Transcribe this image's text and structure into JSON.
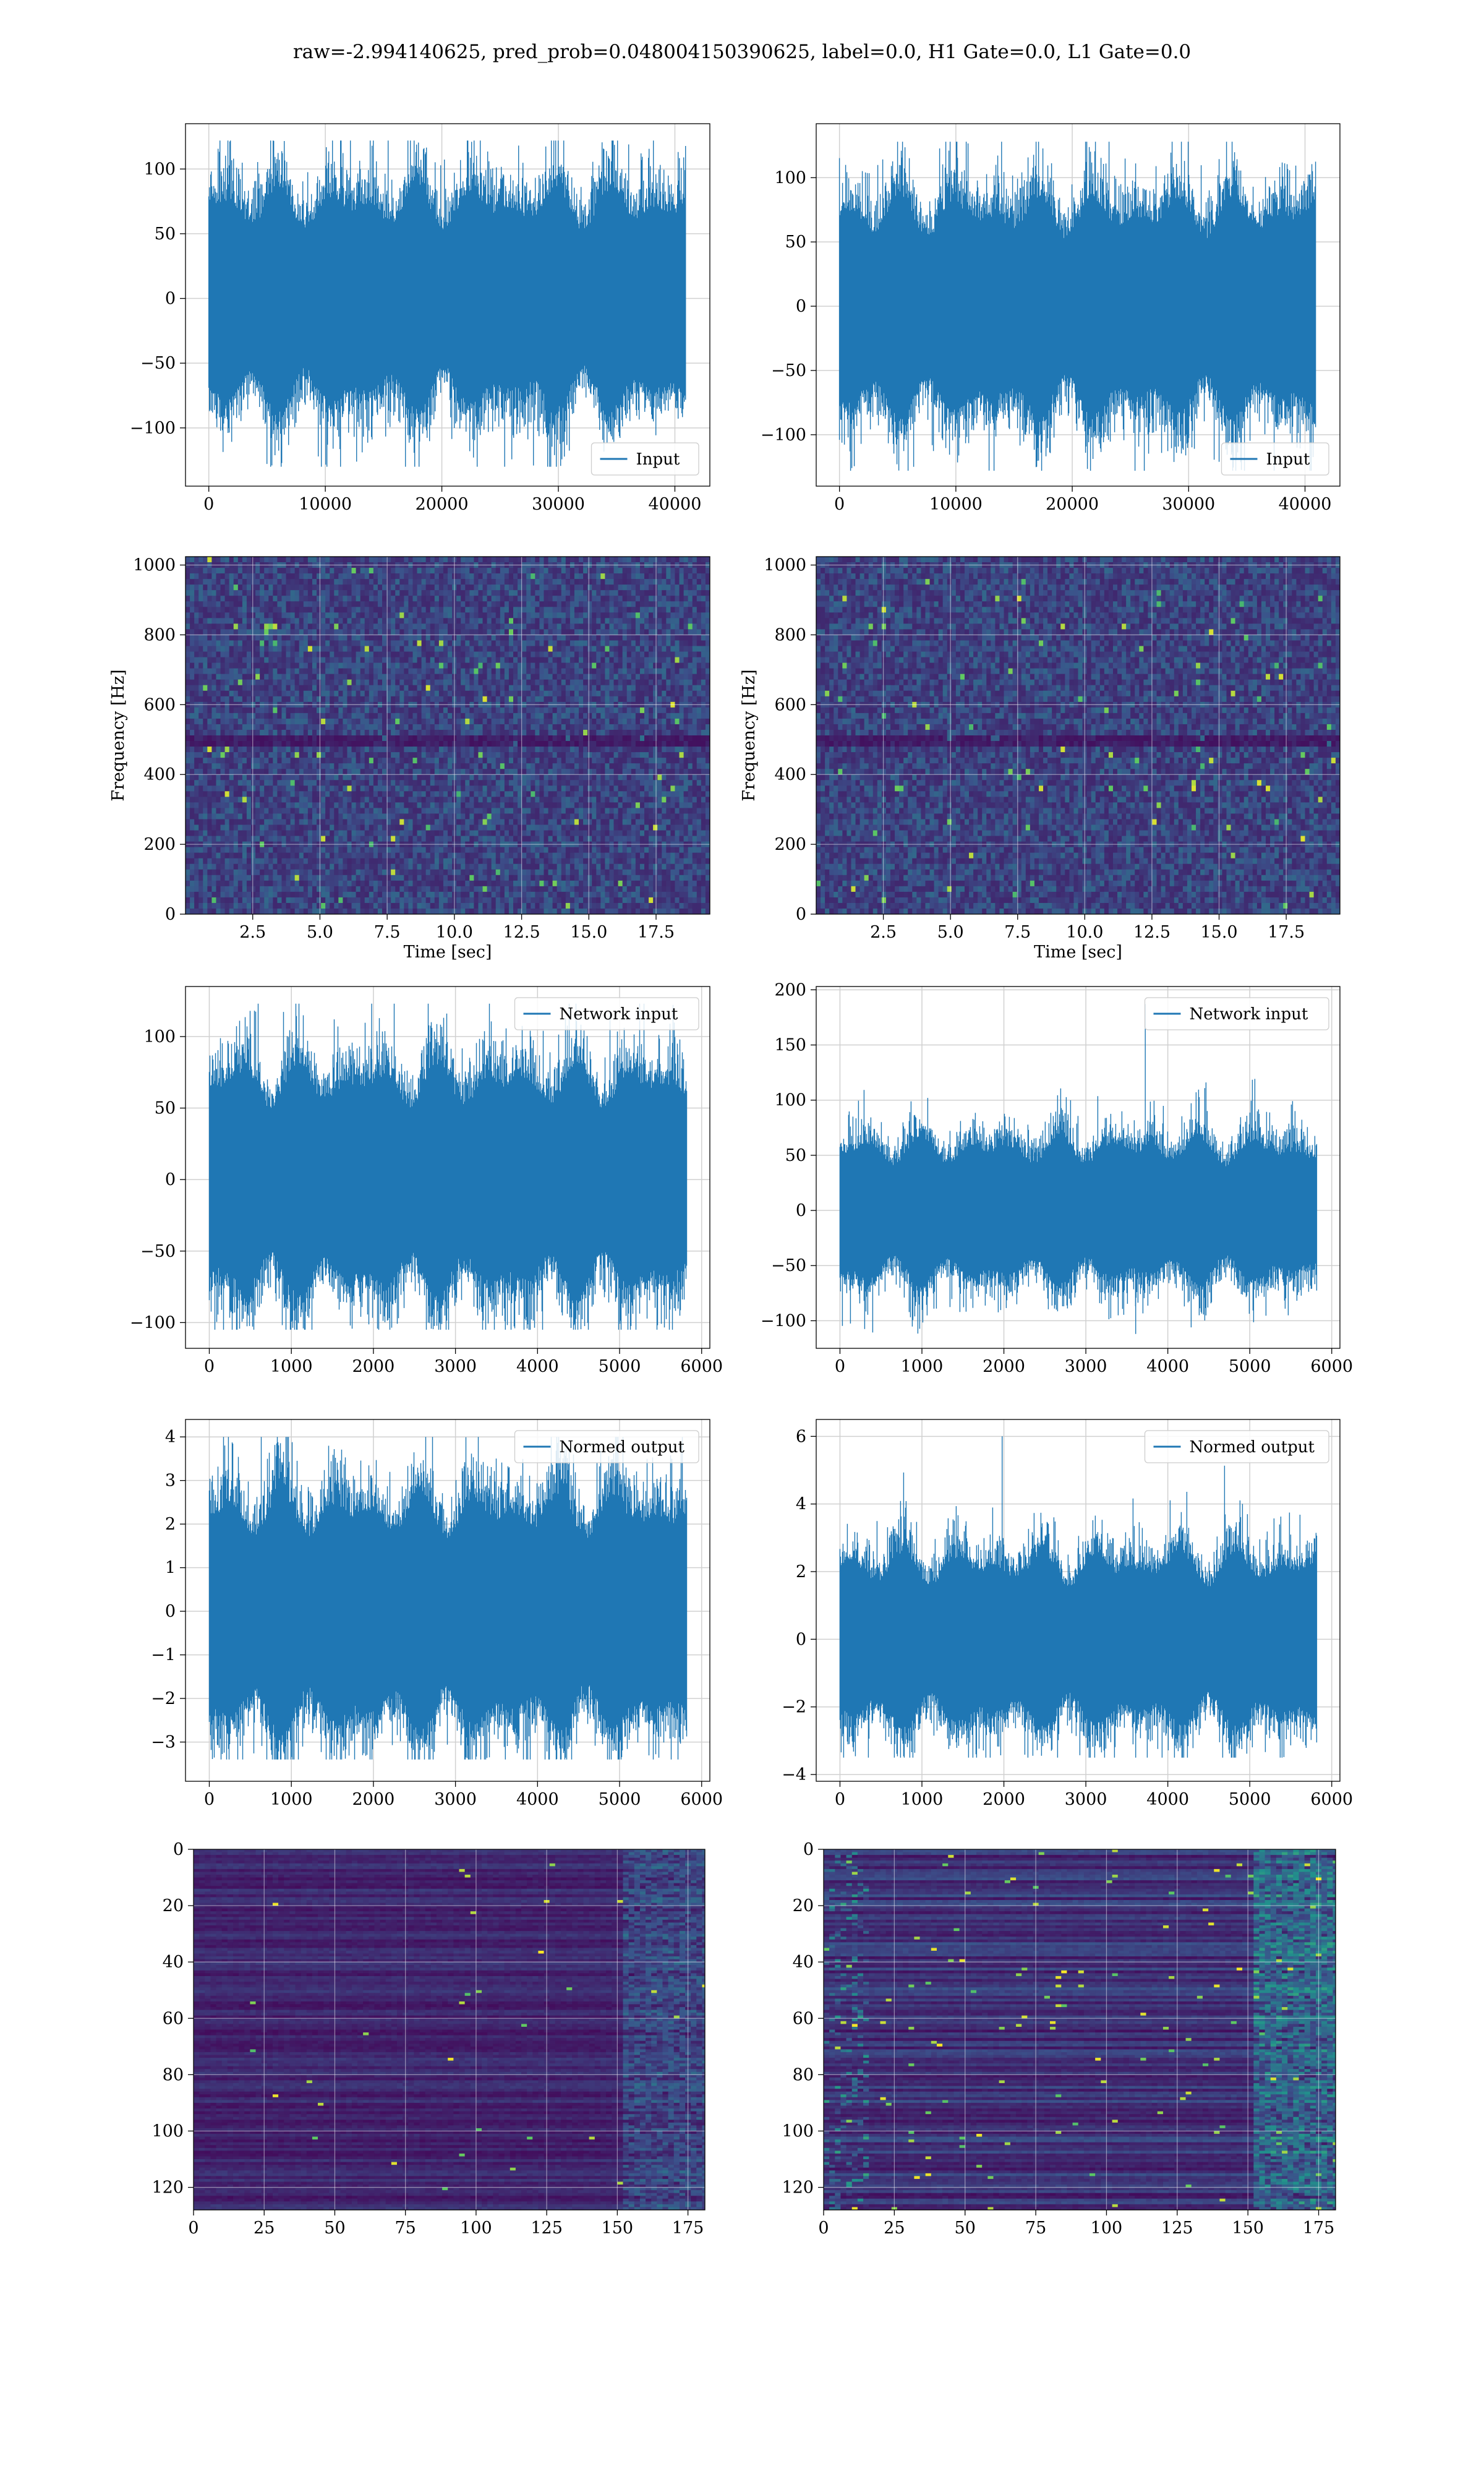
{
  "figure_title": "raw=-2.994140625, pred_prob=0.048004150390625, label=0.0, H1 Gate=0.0, L1 Gate=0.0",
  "colors": {
    "line": "#1f77b4",
    "grid": "#d0d0d0",
    "viridis_low": "#440154",
    "viridis_mid": "#21918c",
    "viridis_high": "#fde725"
  },
  "chart_data": [
    {
      "id": "r1c1",
      "type": "line",
      "title": "",
      "xlabel": "",
      "ylabel": "",
      "grid": true,
      "legend": {
        "placement": "lower-right",
        "entries": [
          "Input"
        ]
      },
      "series": [
        {
          "name": "Input",
          "n_points": 40960,
          "sigma": 30,
          "max": 122,
          "min": -130
        }
      ],
      "xlim": [
        -2000,
        43000
      ],
      "ylim": [
        -145,
        135
      ],
      "xticks": [
        0,
        10000,
        20000,
        30000,
        40000
      ],
      "yticks": [
        -100,
        -50,
        0,
        50,
        100
      ]
    },
    {
      "id": "r1c2",
      "type": "line",
      "title": "",
      "xlabel": "",
      "ylabel": "",
      "grid": true,
      "legend": {
        "placement": "lower-right",
        "entries": [
          "Input"
        ]
      },
      "series": [
        {
          "name": "Input",
          "n_points": 40960,
          "sigma": 30,
          "max": 128,
          "min": -128
        }
      ],
      "xlim": [
        -2000,
        43000
      ],
      "ylim": [
        -140,
        142
      ],
      "xticks": [
        0,
        10000,
        20000,
        30000,
        40000
      ],
      "yticks": [
        -100,
        -50,
        0,
        50,
        100
      ]
    },
    {
      "id": "r2c1",
      "type": "heatmap",
      "title": "",
      "xlabel": "Time [sec]",
      "ylabel": "Frequency [Hz]",
      "grid": true,
      "colormap": "viridis",
      "xlim": [
        0,
        19.5
      ],
      "ylim": [
        0,
        1024
      ],
      "xticks": [
        2.5,
        5.0,
        7.5,
        10.0,
        12.5,
        15.0,
        17.5
      ],
      "yticks": [
        0,
        200,
        400,
        600,
        800,
        1000
      ]
    },
    {
      "id": "r2c2",
      "type": "heatmap",
      "title": "",
      "xlabel": "Time [sec]",
      "ylabel": "Frequency [Hz]",
      "grid": true,
      "colormap": "viridis",
      "xlim": [
        0,
        19.5
      ],
      "ylim": [
        0,
        1024
      ],
      "xticks": [
        2.5,
        5.0,
        7.5,
        10.0,
        12.5,
        15.0,
        17.5
      ],
      "yticks": [
        0,
        200,
        400,
        600,
        800,
        1000
      ]
    },
    {
      "id": "r3c1",
      "type": "line",
      "title": "",
      "xlabel": "",
      "ylabel": "",
      "grid": true,
      "legend": {
        "placement": "upper-right",
        "entries": [
          "Network input"
        ]
      },
      "series": [
        {
          "name": "Network input",
          "n_points": 5820,
          "sigma": 28,
          "max": 123,
          "min": -105
        }
      ],
      "xlim": [
        -290,
        6100
      ],
      "ylim": [
        -118,
        135
      ],
      "xticks": [
        0,
        1000,
        2000,
        3000,
        4000,
        5000,
        6000
      ],
      "yticks": [
        -100,
        -50,
        0,
        50,
        100
      ]
    },
    {
      "id": "r3c2",
      "type": "line",
      "title": "",
      "xlabel": "",
      "ylabel": "",
      "grid": true,
      "legend": {
        "placement": "upper-right",
        "entries": [
          "Network input"
        ]
      },
      "series": [
        {
          "name": "Network input",
          "n_points": 5820,
          "sigma": 23,
          "max": 187,
          "min": -112
        }
      ],
      "xlim": [
        -290,
        6100
      ],
      "ylim": [
        -125,
        203
      ],
      "xticks": [
        0,
        1000,
        2000,
        3000,
        4000,
        5000,
        6000
      ],
      "yticks": [
        -100,
        -50,
        0,
        50,
        100,
        150,
        200
      ]
    },
    {
      "id": "r4c1",
      "type": "line",
      "title": "",
      "xlabel": "",
      "ylabel": "",
      "grid": true,
      "legend": {
        "placement": "upper-right",
        "entries": [
          "Normed output"
        ]
      },
      "series": [
        {
          "name": "Normed output",
          "n_points": 5820,
          "sigma": 0.95,
          "max": 4.0,
          "min": -3.4
        }
      ],
      "xlim": [
        -290,
        6100
      ],
      "ylim": [
        -3.9,
        4.4
      ],
      "xticks": [
        0,
        1000,
        2000,
        3000,
        4000,
        5000,
        6000
      ],
      "yticks": [
        -3,
        -2,
        -1,
        0,
        1,
        2,
        3,
        4
      ]
    },
    {
      "id": "r4c2",
      "type": "line",
      "title": "",
      "xlabel": "",
      "ylabel": "",
      "grid": true,
      "legend": {
        "placement": "upper-right",
        "entries": [
          "Normed output"
        ]
      },
      "series": [
        {
          "name": "Normed output",
          "n_points": 5820,
          "sigma": 0.9,
          "max": 6.0,
          "min": -3.5
        }
      ],
      "xlim": [
        -290,
        6100
      ],
      "ylim": [
        -4.2,
        6.5
      ],
      "xticks": [
        0,
        1000,
        2000,
        3000,
        4000,
        5000,
        6000
      ],
      "yticks": [
        -4,
        -2,
        0,
        2,
        4,
        6
      ]
    },
    {
      "id": "r5c1",
      "type": "heatmap",
      "title": "",
      "xlabel": "",
      "ylabel": "",
      "grid": true,
      "colormap": "viridis",
      "xlim": [
        0,
        181
      ],
      "ylim": [
        128,
        0
      ],
      "xticks": [
        0,
        25,
        50,
        75,
        100,
        125,
        150,
        175
      ],
      "yticks": [
        0,
        20,
        40,
        60,
        80,
        100,
        120
      ]
    },
    {
      "id": "r5c2",
      "type": "heatmap",
      "title": "",
      "xlabel": "",
      "ylabel": "",
      "grid": true,
      "colormap": "viridis",
      "xlim": [
        0,
        181
      ],
      "ylim": [
        128,
        0
      ],
      "xticks": [
        0,
        25,
        50,
        75,
        100,
        125,
        150,
        175
      ],
      "yticks": [
        0,
        20,
        40,
        60,
        80,
        100,
        120
      ]
    }
  ]
}
